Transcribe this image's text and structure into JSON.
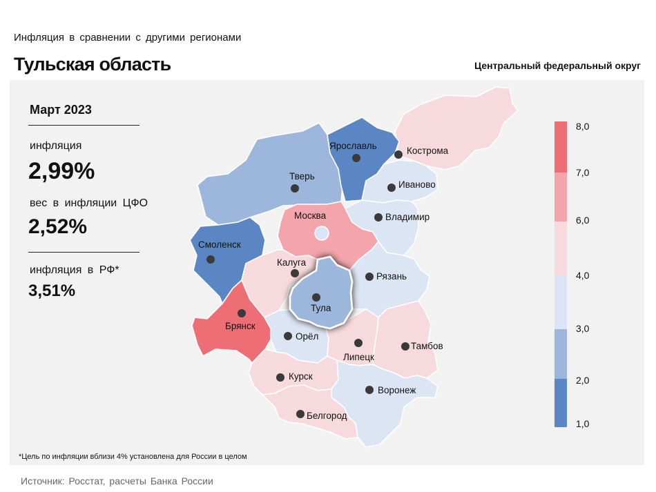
{
  "header": {
    "subtitle": "Инфляция  в сравнении  с другими  регионами",
    "title": "Тульская область",
    "district": "Центральный федеральный округ"
  },
  "summary": {
    "month": "Март 2023",
    "inflation_label": "инфляция",
    "inflation_value": "2,99%",
    "weight_label": "вес в инфляции  ЦФО",
    "weight_value": "2,52%",
    "rf_label": "инфляция  в РФ*",
    "rf_value": "3,51%"
  },
  "colors": {
    "c1": "#5b86c4",
    "c2": "#9db6dc",
    "c3": "#dce5f3",
    "c4": "#f7dadd",
    "c5": "#f3a5ab",
    "c6": "#ee6e75",
    "panel": "#f2f2f2",
    "dot": "#3a3a3a"
  },
  "chart_data": {
    "type": "choropleth",
    "title": "Инфляция  в сравнении  с другими  регионами",
    "highlight": "Тула",
    "legend": {
      "ticks": [
        "8,0",
        "7,0",
        "6,0",
        "4,0",
        "3,0",
        "2,0",
        "1,0"
      ],
      "bins": [
        {
          "from": 7.0,
          "to": 8.0,
          "color": "#ee6e75"
        },
        {
          "from": 6.0,
          "to": 7.0,
          "color": "#f3a5ab"
        },
        {
          "from": 4.0,
          "to": 6.0,
          "color": "#f7dadd"
        },
        {
          "from": 3.0,
          "to": 4.0,
          "color": "#dce5f3"
        },
        {
          "from": 2.0,
          "to": 3.0,
          "color": "#9db6dc"
        },
        {
          "from": 1.0,
          "to": 2.0,
          "color": "#5b86c4"
        }
      ]
    },
    "regions": [
      {
        "name": "Тверь",
        "bin": "2,0–3,0"
      },
      {
        "name": "Ярославль",
        "bin": "1,0–2,0"
      },
      {
        "name": "Кострома",
        "bin": "4,0–6,0"
      },
      {
        "name": "Иваново",
        "bin": "3,0–4,0"
      },
      {
        "name": "Владимир",
        "bin": "3,0–4,0"
      },
      {
        "name": "Москва",
        "bin": "6,0–7,0"
      },
      {
        "name": "Смоленск",
        "bin": "1,0–2,0"
      },
      {
        "name": "Калуга",
        "bin": "4,0–6,0"
      },
      {
        "name": "Тула",
        "bin": "2,0–3,0",
        "value": 2.99
      },
      {
        "name": "Рязань",
        "bin": "3,0–4,0"
      },
      {
        "name": "Брянск",
        "bin": "7,0–8,0"
      },
      {
        "name": "Орёл",
        "bin": "3,0–4,0"
      },
      {
        "name": "Липецк",
        "bin": "4,0–6,0"
      },
      {
        "name": "Тамбов",
        "bin": "4,0–6,0"
      },
      {
        "name": "Курск",
        "bin": "4,0–6,0"
      },
      {
        "name": "Воронеж",
        "bin": "3,0–4,0"
      },
      {
        "name": "Белгород",
        "bin": "4,0–6,0"
      }
    ]
  },
  "footer": {
    "footnote": "*Цель по инфляции вблизи 4% установлена для России в целом",
    "source": "Источник: Росстат, расчеты Банка России"
  }
}
